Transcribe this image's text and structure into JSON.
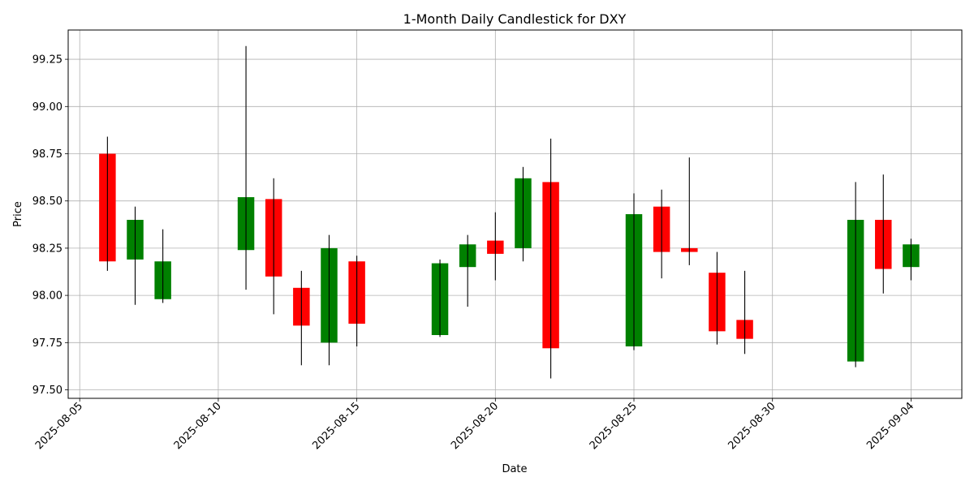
{
  "chart_data": {
    "type": "candlestick",
    "title": "1-Month Daily Candlestick for DXY",
    "xlabel": "Date",
    "ylabel": "Price",
    "grid": true,
    "colors": {
      "up": "#008000",
      "down": "#ff0000",
      "wick": "#000000",
      "grid": "#b0b0b0"
    },
    "ylim": [
      97.455,
      99.405
    ],
    "xlim": [
      "2025-08-04T14:00",
      "2025-09-05T20:00"
    ],
    "x_ticks": [
      "2025-08-05",
      "2025-08-10",
      "2025-08-15",
      "2025-08-20",
      "2025-08-25",
      "2025-08-30",
      "2025-09-04"
    ],
    "y_ticks": [
      "97.50",
      "97.75",
      "98.00",
      "98.25",
      "98.50",
      "98.75",
      "99.00",
      "99.25"
    ],
    "candles": [
      {
        "date": "2025-08-06",
        "open": 98.75,
        "high": 98.84,
        "low": 98.13,
        "close": 98.18
      },
      {
        "date": "2025-08-07",
        "open": 98.19,
        "high": 98.47,
        "low": 97.95,
        "close": 98.4
      },
      {
        "date": "2025-08-08",
        "open": 97.98,
        "high": 98.35,
        "low": 97.96,
        "close": 98.18
      },
      {
        "date": "2025-08-11",
        "open": 98.24,
        "high": 99.32,
        "low": 98.03,
        "close": 98.52
      },
      {
        "date": "2025-08-12",
        "open": 98.51,
        "high": 98.62,
        "low": 97.9,
        "close": 98.1
      },
      {
        "date": "2025-08-13",
        "open": 98.04,
        "high": 98.13,
        "low": 97.63,
        "close": 97.84
      },
      {
        "date": "2025-08-14",
        "open": 97.75,
        "high": 98.32,
        "low": 97.63,
        "close": 98.25
      },
      {
        "date": "2025-08-15",
        "open": 98.18,
        "high": 98.21,
        "low": 97.73,
        "close": 97.85
      },
      {
        "date": "2025-08-18",
        "open": 97.79,
        "high": 98.19,
        "low": 97.78,
        "close": 98.17
      },
      {
        "date": "2025-08-19",
        "open": 98.15,
        "high": 98.32,
        "low": 97.94,
        "close": 98.27
      },
      {
        "date": "2025-08-20",
        "open": 98.29,
        "high": 98.44,
        "low": 98.08,
        "close": 98.22
      },
      {
        "date": "2025-08-21",
        "open": 98.25,
        "high": 98.68,
        "low": 98.18,
        "close": 98.62
      },
      {
        "date": "2025-08-22",
        "open": 98.6,
        "high": 98.83,
        "low": 97.56,
        "close": 97.72
      },
      {
        "date": "2025-08-25",
        "open": 97.73,
        "high": 98.54,
        "low": 97.71,
        "close": 98.43
      },
      {
        "date": "2025-08-26",
        "open": 98.47,
        "high": 98.56,
        "low": 98.09,
        "close": 98.23
      },
      {
        "date": "2025-08-27",
        "open": 98.25,
        "high": 98.73,
        "low": 98.16,
        "close": 98.23
      },
      {
        "date": "2025-08-28",
        "open": 98.12,
        "high": 98.23,
        "low": 97.74,
        "close": 97.81
      },
      {
        "date": "2025-08-29",
        "open": 97.87,
        "high": 98.13,
        "low": 97.69,
        "close": 97.77
      },
      {
        "date": "2025-09-02",
        "open": 97.65,
        "high": 98.6,
        "low": 97.62,
        "close": 98.4
      },
      {
        "date": "2025-09-03",
        "open": 98.4,
        "high": 98.64,
        "low": 98.01,
        "close": 98.14
      },
      {
        "date": "2025-09-04",
        "open": 98.15,
        "high": 98.3,
        "low": 98.08,
        "close": 98.27
      }
    ]
  }
}
